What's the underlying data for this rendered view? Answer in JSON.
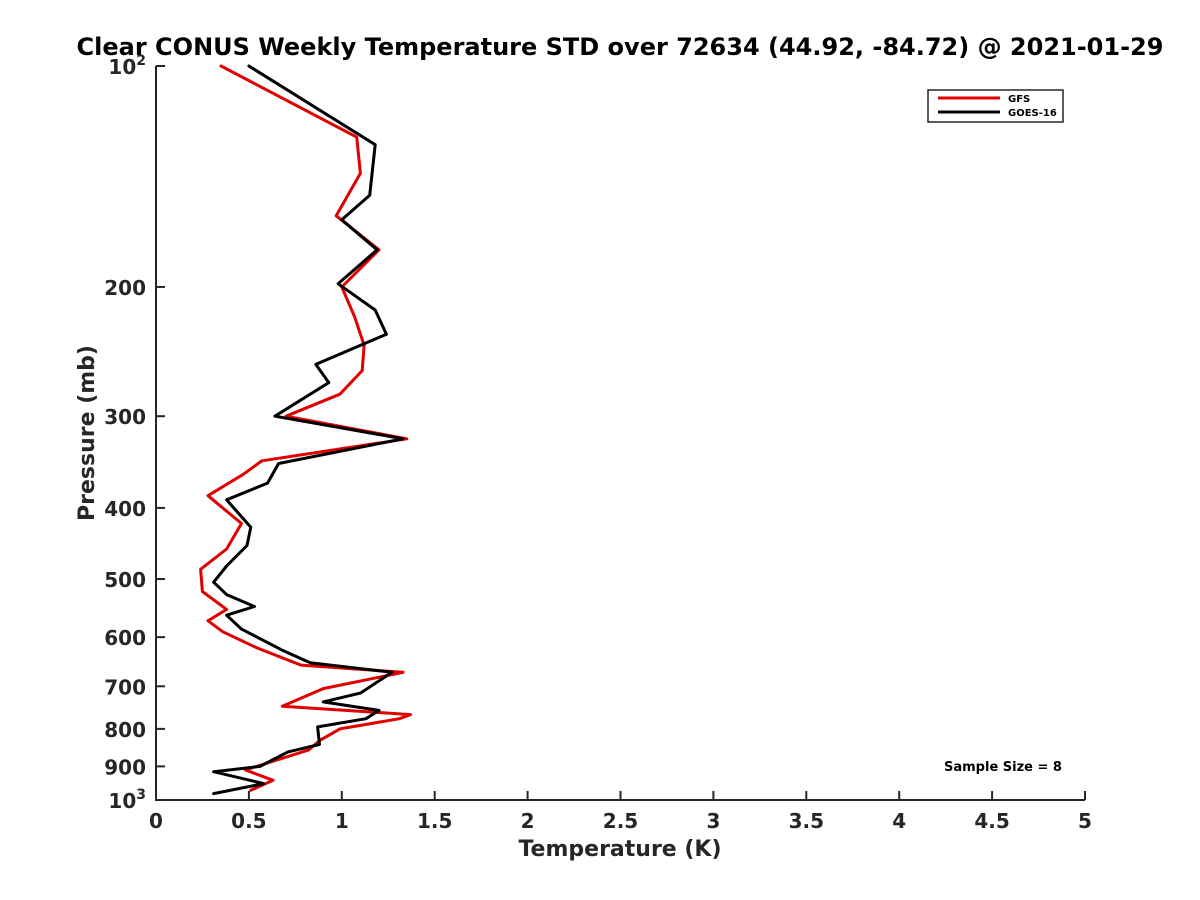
{
  "chart_data": {
    "type": "line",
    "title": "Clear CONUS Weekly Temperature STD over 72634 (44.92, -84.72) @ 2021-01-29",
    "xlabel": "Temperature (K)",
    "ylabel": "Pressure (mb)",
    "xlim": [
      0,
      5
    ],
    "ylim": [
      100,
      1000
    ],
    "yscale": "log",
    "y_reversed": true,
    "grid": false,
    "legend_position": "top-right",
    "x_ticks": [
      0,
      0.5,
      1,
      1.5,
      2,
      2.5,
      3,
      3.5,
      4,
      4.5,
      5
    ],
    "x_tick_labels": [
      "0",
      "0.5",
      "1",
      "1.5",
      "2",
      "2.5",
      "3",
      "3.5",
      "4",
      "4.5",
      "5"
    ],
    "y_ticks": [
      100,
      200,
      300,
      400,
      500,
      600,
      700,
      800,
      900,
      1000
    ],
    "y_tick_labels": [
      {
        "base": "10",
        "exp": "2"
      },
      {
        "base": "200"
      },
      {
        "base": "300"
      },
      {
        "base": "400"
      },
      {
        "base": "500"
      },
      {
        "base": "600"
      },
      {
        "base": "700"
      },
      {
        "base": "800"
      },
      {
        "base": "900"
      },
      {
        "base": "10",
        "exp": "3"
      }
    ],
    "series": [
      {
        "name": "GFS",
        "color": "#e00000",
        "x": [
          0.35,
          1.08,
          1.1,
          0.97,
          1.2,
          1.0,
          1.07,
          1.12,
          1.11,
          0.99,
          0.7,
          1.35,
          0.57,
          0.47,
          0.28,
          0.46,
          0.38,
          0.24,
          0.25,
          0.38,
          0.28,
          0.36,
          0.54,
          0.78,
          1.33,
          0.9,
          0.68,
          1.37,
          1.31,
          0.99,
          0.88,
          0.82,
          0.48,
          0.63,
          0.51
        ],
        "y": [
          100,
          125,
          140,
          160,
          178,
          200,
          220,
          240,
          260,
          280,
          300,
          322,
          345,
          360,
          385,
          420,
          455,
          485,
          520,
          550,
          570,
          590,
          620,
          655,
          670,
          705,
          745,
          765,
          775,
          800,
          830,
          855,
          910,
          940,
          970
        ]
      },
      {
        "name": "GOES-16",
        "color": "#000000",
        "x": [
          0.5,
          1.18,
          1.15,
          1.0,
          1.19,
          0.98,
          1.18,
          1.24,
          0.86,
          0.93,
          0.64,
          1.33,
          0.66,
          0.6,
          0.38,
          0.51,
          0.49,
          0.38,
          0.31,
          0.38,
          0.53,
          0.38,
          0.46,
          0.68,
          0.83,
          1.27,
          1.1,
          0.9,
          1.2,
          1.13,
          0.87,
          0.88,
          0.71,
          0.56,
          0.31,
          0.58,
          0.31
        ],
        "y": [
          100,
          128,
          150,
          162,
          178,
          198,
          215,
          232,
          255,
          270,
          300,
          322,
          348,
          370,
          390,
          425,
          450,
          480,
          505,
          525,
          545,
          560,
          585,
          625,
          650,
          670,
          715,
          735,
          755,
          775,
          795,
          840,
          860,
          900,
          915,
          950,
          980
        ]
      }
    ],
    "annotation": "Sample Size = 8"
  }
}
